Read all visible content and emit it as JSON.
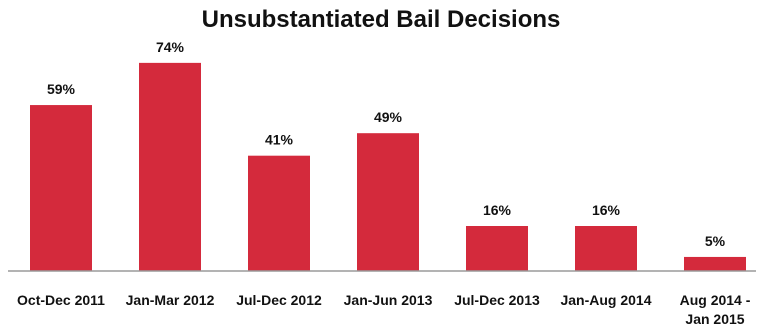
{
  "chart_data": {
    "type": "bar",
    "title": "Unsubstantiated Bail Decisions",
    "categories": [
      "Oct-Dec 2011",
      "Jan-Mar 2012",
      "Jul-Dec 2012",
      "Jan-Jun 2013",
      "Jul-Dec 2013",
      "Jan-Aug 2014",
      "Aug 2014 - Jan 2015"
    ],
    "category_lines": [
      [
        "Oct-Dec 2011"
      ],
      [
        "Jan-Mar 2012"
      ],
      [
        "Jul-Dec 2012"
      ],
      [
        "Jan-Jun 2013"
      ],
      [
        "Jul-Dec 2013"
      ],
      [
        "Jan-Aug 2014"
      ],
      [
        "Aug 2014 -",
        "Jan 2015"
      ]
    ],
    "values": [
      59,
      74,
      41,
      49,
      16,
      16,
      5
    ],
    "value_labels": [
      "59%",
      "74%",
      "41%",
      "49%",
      "16%",
      "16%",
      "5%"
    ],
    "ylim": [
      0,
      80
    ],
    "grid": false,
    "legend": "none",
    "bar_color": "#D42A3C",
    "axis_color": "#9a9a9a"
  }
}
